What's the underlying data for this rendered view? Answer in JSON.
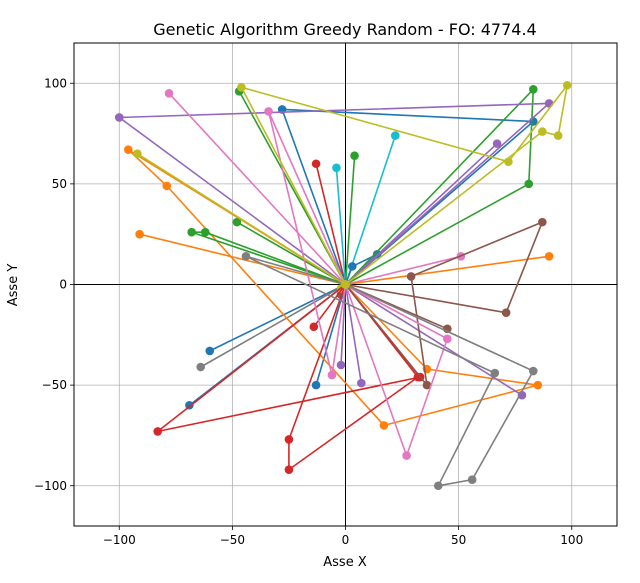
{
  "chart_data": {
    "type": "line",
    "title": "Genetic Algorithm Greedy Random - FO: 4774.4",
    "xlabel": "Asse X",
    "ylabel": "Asse Y",
    "xlim": [
      -120,
      120
    ],
    "ylim": [
      -120,
      120
    ],
    "xticks": [
      -100,
      -50,
      0,
      50,
      100
    ],
    "yticks": [
      -100,
      -50,
      0,
      50,
      100
    ],
    "grid": true,
    "origin_axes": true,
    "depot": [
      0,
      0
    ],
    "series": [
      {
        "color": "#1f77b4",
        "points": [
          [
            0,
            0
          ],
          [
            -60,
            -33
          ],
          [
            0,
            0
          ]
        ]
      },
      {
        "color": "#ff7f0e",
        "points": [
          [
            0,
            0
          ],
          [
            -91,
            25
          ],
          [
            0,
            0
          ]
        ]
      },
      {
        "color": "#2ca02c",
        "points": [
          [
            0,
            0
          ],
          [
            -48,
            31
          ],
          [
            0,
            0
          ]
        ]
      },
      {
        "color": "#d62728",
        "points": [
          [
            0,
            0
          ],
          [
            -13,
            60
          ],
          [
            0,
            0
          ]
        ]
      },
      {
        "color": "#9467bd",
        "points": [
          [
            0,
            0
          ],
          [
            -2,
            -40
          ],
          [
            0,
            0
          ]
        ]
      },
      {
        "color": "#8c564b",
        "points": [
          [
            0,
            0
          ],
          [
            -2,
            -5
          ],
          [
            0,
            0
          ]
        ]
      },
      {
        "color": "#e377c2",
        "points": [
          [
            0,
            0
          ],
          [
            51,
            14
          ],
          [
            0,
            0
          ]
        ]
      },
      {
        "color": "#7f7f7f",
        "points": [
          [
            0,
            0
          ],
          [
            -64,
            -41
          ],
          [
            0,
            0
          ]
        ]
      },
      {
        "color": "#bcbd22",
        "points": [
          [
            0,
            0
          ],
          [
            -2,
            -2
          ],
          [
            0,
            0
          ]
        ]
      },
      {
        "color": "#17becf",
        "points": [
          [
            0,
            0
          ],
          [
            22,
            74
          ],
          [
            0,
            0
          ]
        ]
      },
      {
        "color": "#17becf",
        "points": [
          [
            0,
            0
          ],
          [
            -4,
            58
          ],
          [
            0,
            0
          ]
        ]
      },
      {
        "color": "#1f77b4",
        "points": [
          [
            0,
            0
          ],
          [
            -69,
            -60
          ],
          [
            0,
            0
          ]
        ]
      },
      {
        "color": "#1f77b4",
        "points": [
          [
            0,
            0
          ],
          [
            -13,
            -50
          ],
          [
            0,
            0
          ]
        ]
      },
      {
        "color": "#1f77b4",
        "points": [
          [
            0,
            0
          ],
          [
            14,
            15
          ],
          [
            3,
            9
          ],
          [
            0,
            0
          ]
        ]
      },
      {
        "color": "#1f77b4",
        "points": [
          [
            0,
            0
          ],
          [
            83,
            81
          ],
          [
            -28,
            87
          ],
          [
            0,
            0
          ]
        ]
      },
      {
        "color": "#ff7f0e",
        "points": [
          [
            0,
            0
          ],
          [
            90,
            14
          ],
          [
            0,
            0
          ]
        ]
      },
      {
        "color": "#ff7f0e",
        "points": [
          [
            0,
            0
          ],
          [
            -96,
            67
          ],
          [
            -79,
            49
          ],
          [
            17,
            -70
          ],
          [
            85,
            -50
          ],
          [
            36,
            -42
          ],
          [
            0,
            0
          ]
        ]
      },
      {
        "color": "#2ca02c",
        "points": [
          [
            0,
            0
          ],
          [
            -47,
            96
          ],
          [
            0,
            0
          ]
        ]
      },
      {
        "color": "#2ca02c",
        "points": [
          [
            0,
            0
          ],
          [
            81,
            50
          ],
          [
            83,
            97
          ],
          [
            0,
            0
          ]
        ]
      },
      {
        "color": "#2ca02c",
        "points": [
          [
            0,
            0
          ],
          [
            -62,
            26
          ],
          [
            -68,
            26
          ],
          [
            0,
            0
          ]
        ]
      },
      {
        "color": "#2ca02c",
        "points": [
          [
            0,
            0
          ],
          [
            4,
            64
          ],
          [
            0,
            0
          ]
        ]
      },
      {
        "color": "#d62728",
        "points": [
          [
            0,
            0
          ],
          [
            -83,
            -73
          ],
          [
            33,
            -46
          ],
          [
            0,
            0
          ]
        ]
      },
      {
        "color": "#d62728",
        "points": [
          [
            0,
            0
          ],
          [
            -25,
            -77
          ],
          [
            -25,
            -92
          ],
          [
            32,
            -46
          ],
          [
            0,
            0
          ]
        ]
      },
      {
        "color": "#d62728",
        "points": [
          [
            0,
            0
          ],
          [
            -14,
            -21
          ],
          [
            0,
            0
          ]
        ]
      },
      {
        "color": "#9467bd",
        "points": [
          [
            0,
            0
          ],
          [
            -100,
            83
          ],
          [
            90,
            90
          ],
          [
            0,
            0
          ]
        ]
      },
      {
        "color": "#9467bd",
        "points": [
          [
            0,
            0
          ],
          [
            67,
            70
          ],
          [
            0,
            0
          ]
        ]
      },
      {
        "color": "#9467bd",
        "points": [
          [
            0,
            0
          ],
          [
            7,
            -49
          ],
          [
            0,
            0
          ]
        ]
      },
      {
        "color": "#9467bd",
        "points": [
          [
            0,
            0
          ],
          [
            78,
            -55
          ],
          [
            0,
            0
          ]
        ]
      },
      {
        "color": "#8c564b",
        "points": [
          [
            0,
            0
          ],
          [
            45,
            -22
          ],
          [
            0,
            0
          ]
        ]
      },
      {
        "color": "#8c564b",
        "points": [
          [
            0,
            0
          ],
          [
            36,
            -50
          ],
          [
            29,
            4
          ],
          [
            87,
            31
          ],
          [
            71,
            -14
          ],
          [
            0,
            0
          ]
        ]
      },
      {
        "color": "#e377c2",
        "points": [
          [
            0,
            0
          ],
          [
            -78,
            95
          ],
          [
            0,
            0
          ]
        ]
      },
      {
        "color": "#e377c2",
        "points": [
          [
            0,
            0
          ],
          [
            -34,
            86
          ],
          [
            -6,
            -45
          ],
          [
            0,
            0
          ]
        ]
      },
      {
        "color": "#e377c2",
        "points": [
          [
            0,
            0
          ],
          [
            27,
            -85
          ],
          [
            45,
            -27
          ],
          [
            0,
            0
          ]
        ]
      },
      {
        "color": "#7f7f7f",
        "points": [
          [
            0,
            0
          ],
          [
            -44,
            14
          ],
          [
            66,
            -44
          ],
          [
            41,
            -100
          ],
          [
            56,
            -97
          ],
          [
            83,
            -43
          ],
          [
            0,
            0
          ]
        ]
      },
      {
        "color": "#bcbd22",
        "points": [
          [
            0,
            0
          ],
          [
            -92,
            65
          ],
          [
            0,
            0
          ]
        ]
      },
      {
        "color": "#bcbd22",
        "points": [
          [
            0,
            0
          ],
          [
            -46,
            98
          ],
          [
            72,
            61
          ],
          [
            98,
            99
          ],
          [
            94,
            74
          ],
          [
            87,
            76
          ],
          [
            0,
            0
          ]
        ]
      }
    ]
  }
}
